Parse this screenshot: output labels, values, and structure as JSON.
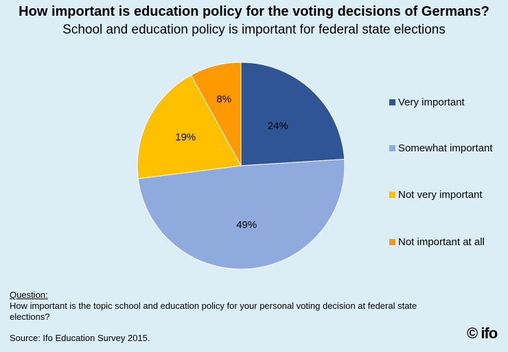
{
  "chart_data": {
    "type": "pie",
    "title": "How important is education policy for the voting decisions of Germans?",
    "subtitle": "School and education policy is important for federal state elections",
    "slices": [
      {
        "label": "Very important",
        "value": 24,
        "display": "24%",
        "color": "#2f5597"
      },
      {
        "label": "Somewhat important",
        "value": 49,
        "display": "49%",
        "color": "#8faadc"
      },
      {
        "label": "Not very important",
        "value": 19,
        "display": "19%",
        "color": "#ffc000"
      },
      {
        "label": "Not important at all",
        "value": 8,
        "display": "8%",
        "color": "#ff9900"
      }
    ],
    "legend_position": "right"
  },
  "footer": {
    "question_heading": "Question:",
    "question_text": "How important is the topic school and education policy for your personal voting decision at federal state elections?",
    "source": "Source: Ifo Education Survey 2015.",
    "logo_text": "© ifo"
  }
}
